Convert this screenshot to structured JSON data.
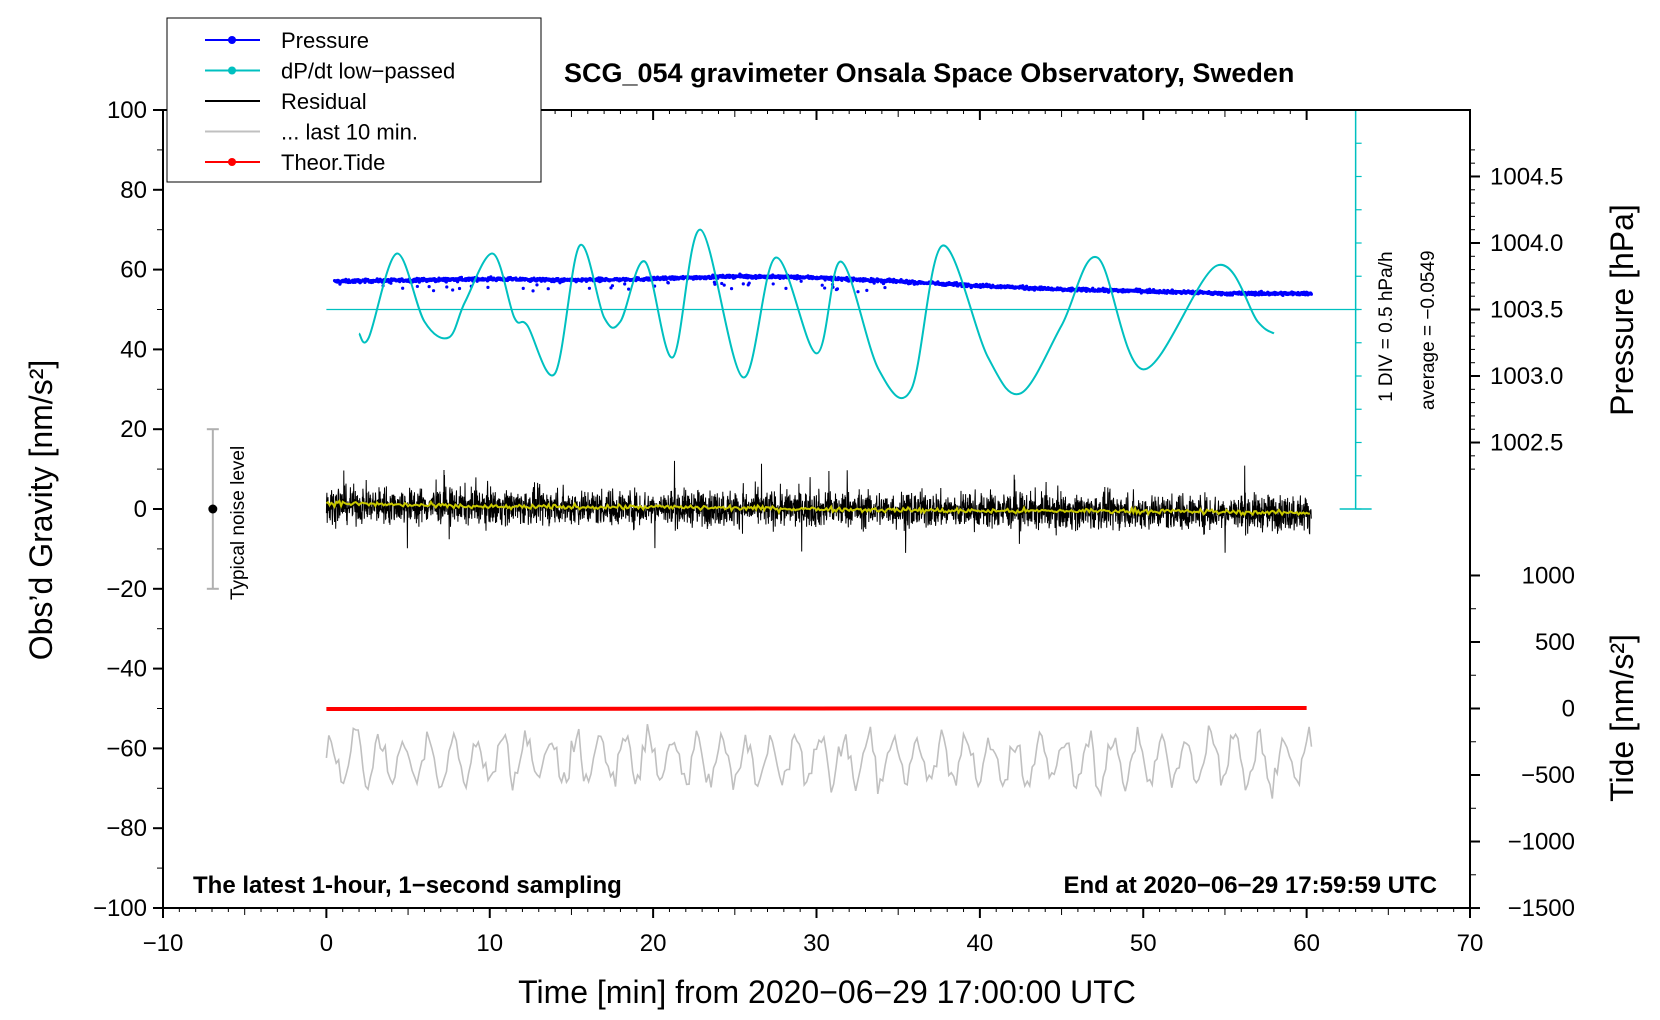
{
  "chart_data": {
    "type": "line",
    "title": "SCG_054 gravimeter Onsala Space Observatory, Sweden",
    "xlabel": "Time [min] from 2020−06−29 17:00:00 UTC",
    "ylabel_left": "Obs’d Gravity [nm/s²]",
    "ylabel_right_top": "Pressure [hPa]",
    "ylabel_right_bottom": "Tide [nm/s²]",
    "xlim": [
      -10,
      70
    ],
    "ylim_left": [
      -100,
      100
    ],
    "x_ticks": [
      "−10",
      "0",
      "10",
      "20",
      "30",
      "40",
      "50",
      "60",
      "70"
    ],
    "y_left_ticks": [
      "100",
      "80",
      "60",
      "40",
      "20",
      "0",
      "−20",
      "−40",
      "−60",
      "−80",
      "−100"
    ],
    "pressure_ticks": [
      "1004.5",
      "1004.0",
      "1003.5",
      "1003.0",
      "1002.5"
    ],
    "tide_ticks": [
      "1000",
      "500",
      "0",
      "−500",
      "−1000",
      "−1500"
    ],
    "annotation_left": "The latest 1-hour, 1−second sampling",
    "annotation_right": "End at 2020−06−29 17:59:59 UTC",
    "noise_label": "Typical noise level",
    "noise_level_range": [
      -20,
      20
    ],
    "dpdt_scale": "1 DIV = 0.5 hPa/h",
    "dpdt_average": "average = −0.0549",
    "legend": [
      {
        "label": "Pressure",
        "color": "#0000ff",
        "marker": true
      },
      {
        "label": "dP/dt low−passed",
        "color": "#00c0c0",
        "marker": true
      },
      {
        "label": "Residual",
        "color": "#000000",
        "marker": false
      },
      {
        "label": "... last 10 min.",
        "color": "#c0c0c0",
        "marker": false
      },
      {
        "label": "Theor.Tide",
        "color": "#ff0000",
        "marker": true
      }
    ],
    "series": [
      {
        "name": "Pressure",
        "axis": "pressure_hPa",
        "color": "#0000ff",
        "x": [
          0,
          5,
          10,
          15,
          20,
          25,
          30,
          35,
          40,
          45,
          50,
          55,
          60
        ],
        "values": [
          1003.71,
          1003.72,
          1003.73,
          1003.72,
          1003.73,
          1003.75,
          1003.74,
          1003.71,
          1003.68,
          1003.65,
          1003.64,
          1003.62,
          1003.62
        ]
      },
      {
        "name": "dP/dt low-passed",
        "axis": "gravity_nm_s2",
        "color": "#00c0c0",
        "x": [
          2,
          2.6,
          4.3,
          6,
          7.5,
          8.5,
          10.2,
          11.5,
          12.3,
          14,
          15.5,
          17,
          18,
          19.5,
          21.2,
          22.9,
          25.5,
          27.5,
          30,
          31.5,
          33.8,
          35.8,
          37.7,
          40.5,
          42.5,
          45,
          47.2,
          50,
          54.5,
          57,
          58
        ],
        "values": [
          44,
          43,
          64,
          47,
          43,
          52,
          64,
          48,
          46,
          34,
          66,
          48,
          47,
          62,
          38,
          70,
          33,
          63,
          39,
          62,
          35,
          30,
          66,
          38,
          29,
          46,
          63,
          35,
          61,
          47,
          44
        ]
      },
      {
        "name": "Residual",
        "axis": "gravity_nm_s2",
        "color": "#000000",
        "x": [
          0,
          60
        ],
        "values": [
          1,
          -1
        ],
        "noise_envelope": 8
      },
      {
        "name": "Residual smoothed",
        "axis": "gravity_nm_s2",
        "color": "#c8c800",
        "x": [
          0,
          10,
          20,
          30,
          40,
          50,
          60
        ],
        "values": [
          1.5,
          0.5,
          0.5,
          0,
          -0.5,
          -0.5,
          -1
        ]
      },
      {
        "name": "... last 10 min.",
        "axis": "gravity_nm_s2",
        "color": "#c0c0c0",
        "x": [
          0,
          60
        ],
        "values": [
          -63,
          -63
        ],
        "amplitude": 6
      },
      {
        "name": "Theor.Tide",
        "axis": "tide_nm_s2",
        "color": "#ff0000",
        "x": [
          0,
          30,
          60
        ],
        "values": [
          -4,
          0,
          4
        ]
      }
    ],
    "reference_lines": [
      {
        "name": "dP/dt zero",
        "axis": "gravity_nm_s2",
        "value": 50,
        "color": "#00c0c0"
      }
    ]
  }
}
